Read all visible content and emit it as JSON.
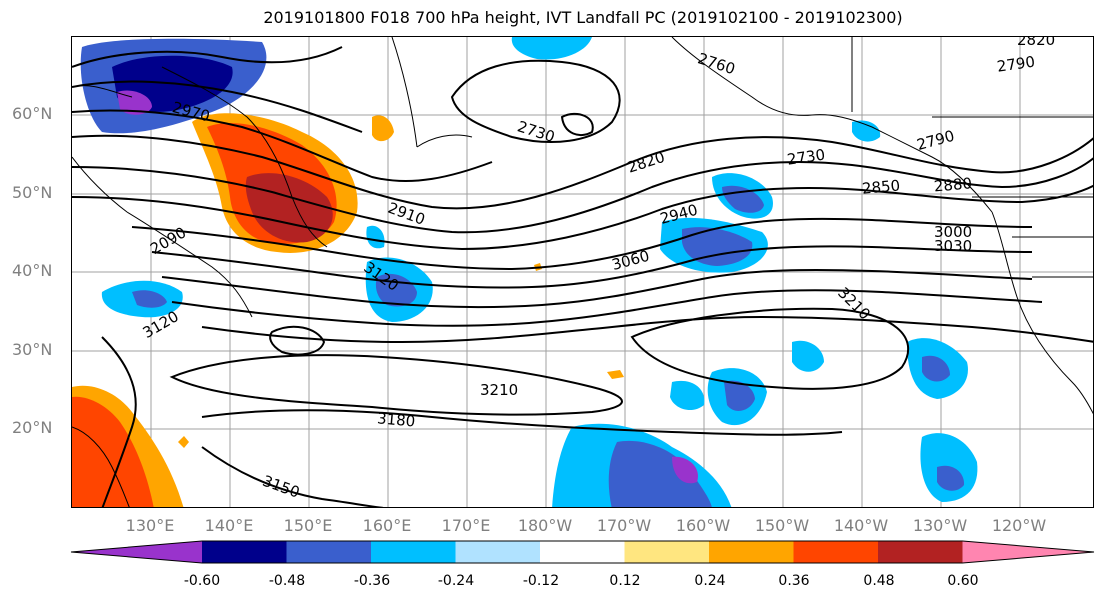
{
  "title": "2019101800 F018 700 hPa height, IVT Landfall PC (2019102100 - 2019102300)",
  "lat_labels": [
    "60°N",
    "50°N",
    "40°N",
    "30°N",
    "20°N"
  ],
  "lon_labels": [
    "130°E",
    "140°E",
    "150°E",
    "160°E",
    "170°E",
    "180°W",
    "170°W",
    "160°W",
    "150°W",
    "140°W",
    "130°W",
    "120°W"
  ],
  "contour_labels": [
    "2760",
    "2790",
    "2820",
    "2970",
    "2730",
    "2820",
    "2730",
    "2790",
    "2850",
    "2880",
    "2910",
    "2940",
    "3000",
    "3030",
    "3060",
    "2090",
    "3120",
    "3210",
    "3120",
    "3210",
    "3180",
    "3150"
  ],
  "colorbar": {
    "ticks": [
      "-0.60",
      "-0.48",
      "-0.36",
      "-0.24",
      "-0.12",
      "0.12",
      "0.24",
      "0.36",
      "0.48",
      "0.60"
    ],
    "colors": [
      "#9933cc",
      "#00008b",
      "#3a5fcd",
      "#00bfff",
      "#b0e2ff",
      "#ffffff",
      "#ffe680",
      "#ffa500",
      "#ff4500",
      "#b22222",
      "#ff85b0"
    ]
  }
}
